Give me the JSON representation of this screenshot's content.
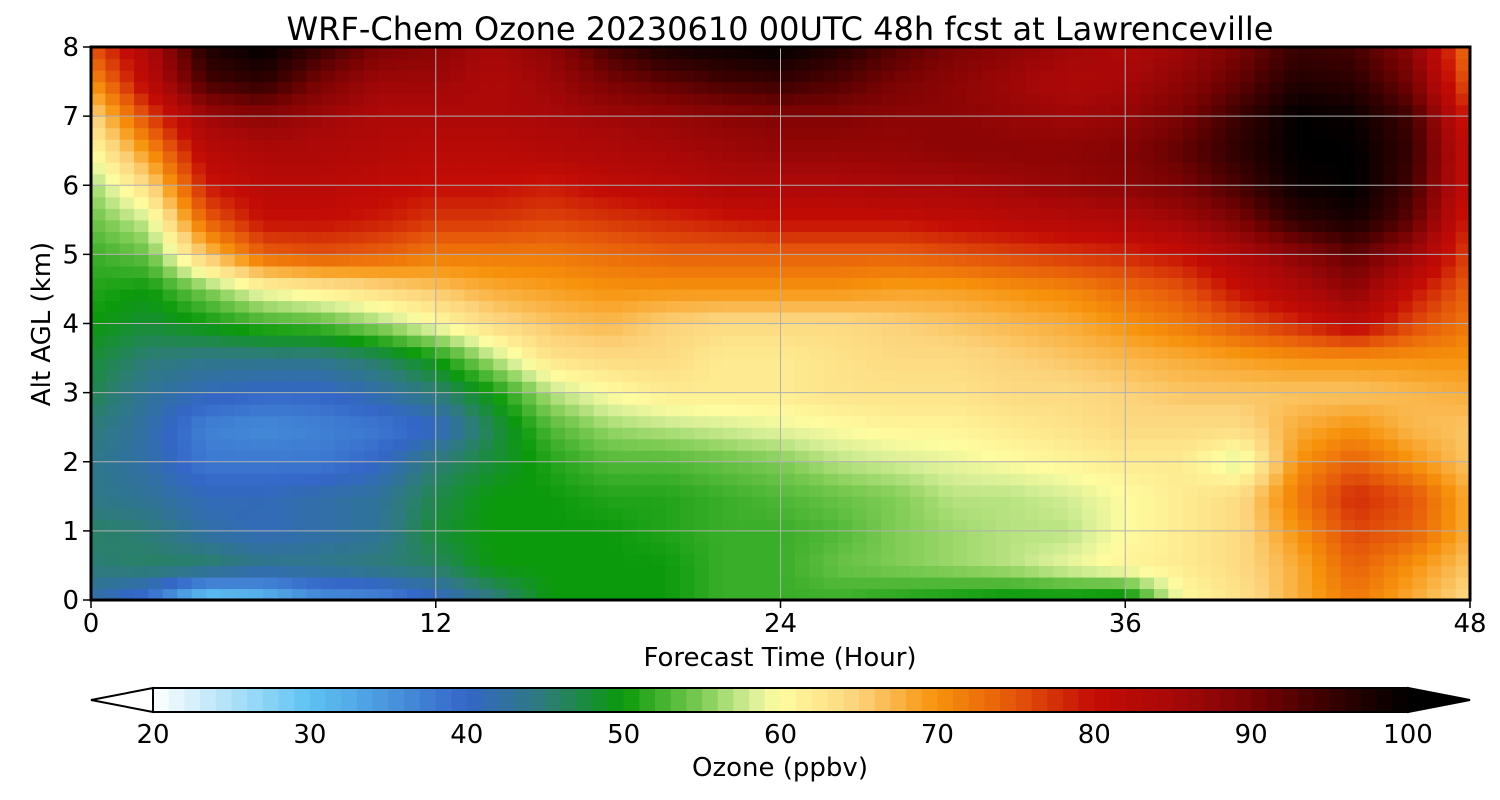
{
  "chart_data": {
    "type": "heatmap",
    "title": "WRF-Chem Ozone  20230610 00UTC 48h fcst at Lawrenceville",
    "xlabel": "Forecast Time (Hour)",
    "ylabel": "Alt AGL (km)",
    "xlim": [
      0,
      48
    ],
    "ylim": [
      0,
      8
    ],
    "x_ticks": [
      "0",
      "12",
      "24",
      "36",
      "48"
    ],
    "y_ticks": [
      "0",
      "1",
      "2",
      "3",
      "4",
      "5",
      "6",
      "7",
      "8"
    ],
    "grid": true,
    "colorbar": {
      "label": "Ozone  (ppbv)",
      "range": [
        20,
        100
      ],
      "ticks": [
        "20",
        "30",
        "40",
        "50",
        "60",
        "70",
        "80",
        "90",
        "100"
      ],
      "extend": "both",
      "color_stops": [
        {
          "value": 20,
          "color": "#ffffff"
        },
        {
          "value": 30,
          "color": "#5ec3f2"
        },
        {
          "value": 40,
          "color": "#3466c8"
        },
        {
          "value": 45,
          "color": "#2d7c78"
        },
        {
          "value": 50,
          "color": "#0b9a0b"
        },
        {
          "value": 55,
          "color": "#7fcc55"
        },
        {
          "value": 58,
          "color": "#d4ee96"
        },
        {
          "value": 60,
          "color": "#fffca0"
        },
        {
          "value": 65,
          "color": "#fcd27a"
        },
        {
          "value": 70,
          "color": "#f7920b"
        },
        {
          "value": 75,
          "color": "#e4540a"
        },
        {
          "value": 80,
          "color": "#c40c05"
        },
        {
          "value": 85,
          "color": "#a80808"
        },
        {
          "value": 90,
          "color": "#7a0303"
        },
        {
          "value": 95,
          "color": "#380000"
        },
        {
          "value": 100,
          "color": "#000000"
        }
      ]
    },
    "x_hours": [
      0,
      2,
      4,
      6,
      8,
      10,
      12,
      14,
      16,
      18,
      20,
      22,
      24,
      26,
      28,
      30,
      32,
      34,
      36,
      38,
      40,
      42,
      44,
      46,
      48
    ],
    "z_altitudes_km": [
      0,
      0.5,
      1,
      1.5,
      2,
      2.5,
      3,
      3.5,
      4,
      4.5,
      5,
      5.5,
      6,
      6.5,
      7,
      7.5,
      8
    ],
    "values_ppbv": [
      [
        42,
        38,
        28,
        30,
        35,
        36,
        40,
        44,
        50,
        50,
        50,
        52,
        52,
        52,
        51,
        50,
        49,
        49,
        48,
        60,
        63,
        68,
        72,
        68,
        64
      ],
      [
        45,
        46,
        46,
        44,
        44,
        45,
        46,
        50,
        50,
        50,
        50,
        52,
        52,
        54,
        55,
        56,
        57,
        59,
        61,
        62,
        64,
        68,
        74,
        70,
        66
      ],
      [
        46,
        45,
        42,
        41,
        42,
        43,
        48,
        50,
        50,
        50,
        51,
        52,
        52,
        53,
        55,
        56,
        57,
        57,
        60,
        62,
        64,
        70,
        76,
        74,
        68
      ],
      [
        44,
        43,
        41,
        41,
        42,
        43,
        47,
        50,
        50,
        51,
        51,
        52,
        53,
        54,
        55,
        57,
        57,
        58,
        60,
        62,
        64,
        72,
        78,
        75,
        68
      ],
      [
        44,
        42,
        38,
        38,
        38,
        40,
        45,
        48,
        51,
        53,
        53,
        54,
        55,
        57,
        58,
        59,
        60,
        61,
        62,
        62,
        58,
        70,
        74,
        70,
        66
      ],
      [
        45,
        42,
        37,
        36,
        37,
        38,
        40,
        47,
        53,
        56,
        57,
        58,
        59,
        60,
        61,
        61,
        62,
        63,
        64,
        64,
        64,
        68,
        70,
        67,
        66
      ],
      [
        47,
        43,
        41,
        40,
        40,
        42,
        45,
        50,
        57,
        60,
        62,
        62,
        62,
        63,
        63,
        63,
        64,
        64,
        65,
        66,
        66,
        66,
        66,
        67,
        68
      ],
      [
        48,
        45,
        44,
        44,
        44,
        46,
        50,
        57,
        63,
        64,
        64,
        62,
        62,
        63,
        64,
        64,
        65,
        66,
        67,
        68,
        69,
        70,
        70,
        70,
        70
      ],
      [
        50,
        48,
        50,
        52,
        53,
        56,
        60,
        64,
        66,
        67,
        65,
        64,
        64,
        64,
        65,
        66,
        67,
        68,
        70,
        72,
        75,
        78,
        82,
        76,
        72
      ],
      [
        51,
        50,
        55,
        60,
        62,
        64,
        66,
        68,
        69,
        70,
        70,
        70,
        70,
        70,
        69,
        69,
        70,
        71,
        73,
        75,
        80,
        84,
        88,
        80,
        74
      ],
      [
        52,
        54,
        66,
        74,
        75,
        74,
        72,
        72,
        72,
        73,
        74,
        74,
        74,
        74,
        74,
        75,
        76,
        77,
        78,
        80,
        84,
        88,
        92,
        86,
        76
      ],
      [
        54,
        58,
        74,
        80,
        80,
        79,
        77,
        77,
        76,
        77,
        78,
        79,
        80,
        80,
        80,
        81,
        82,
        83,
        84,
        86,
        90,
        96,
        98,
        92,
        78
      ],
      [
        56,
        64,
        79,
        82,
        82,
        81,
        80,
        80,
        79,
        81,
        82,
        84,
        84,
        84,
        85,
        85,
        86,
        87,
        88,
        90,
        94,
        99,
        100,
        94,
        80
      ],
      [
        60,
        70,
        82,
        84,
        84,
        83,
        82,
        82,
        83,
        84,
        85,
        86,
        87,
        87,
        87,
        88,
        88,
        88,
        89,
        92,
        96,
        100,
        100,
        95,
        80
      ],
      [
        64,
        76,
        86,
        88,
        86,
        84,
        84,
        84,
        85,
        86,
        87,
        88,
        89,
        89,
        88,
        88,
        87,
        86,
        87,
        90,
        95,
        100,
        99,
        94,
        78
      ],
      [
        70,
        82,
        94,
        96,
        90,
        86,
        86,
        84,
        86,
        90,
        92,
        94,
        95,
        93,
        90,
        88,
        86,
        84,
        85,
        88,
        92,
        97,
        96,
        90,
        74
      ],
      [
        75,
        84,
        97,
        100,
        95,
        90,
        88,
        85,
        88,
        94,
        98,
        99,
        100,
        97,
        93,
        90,
        88,
        86,
        84,
        86,
        90,
        95,
        94,
        88,
        72
      ]
    ]
  }
}
